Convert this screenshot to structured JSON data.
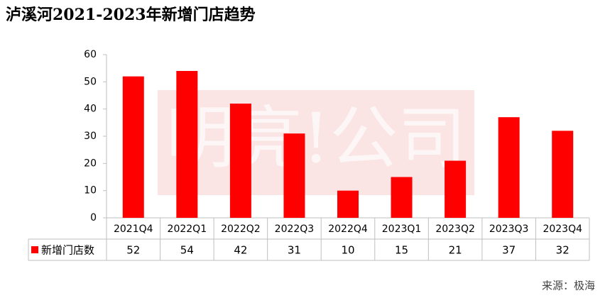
{
  "chart_data": {
    "type": "bar",
    "title": "泸溪河2021-2023年新增门店趋势",
    "categories": [
      "2021Q4",
      "2022Q1",
      "2022Q2",
      "2022Q3",
      "2022Q4",
      "2023Q1",
      "2023Q2",
      "2023Q3",
      "2023Q4"
    ],
    "series": [
      {
        "name": "新增门店数",
        "color": "#ff0000",
        "values": [
          52,
          54,
          42,
          31,
          10,
          15,
          21,
          37,
          32
        ]
      }
    ],
    "ylim": [
      0,
      60
    ],
    "yticks": [
      0,
      10,
      20,
      30,
      40,
      50,
      60
    ],
    "grid": false,
    "watermark": "明亮!公司",
    "source": "来源：极海"
  }
}
